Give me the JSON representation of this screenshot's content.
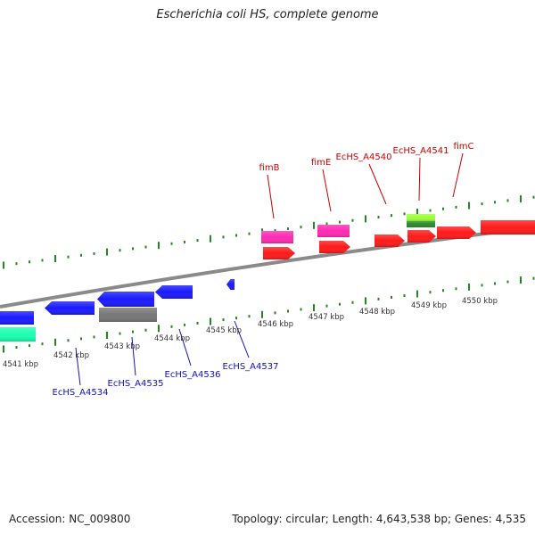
{
  "title": "Escherichia coli HS, complete genome",
  "accession": "Accession: NC_009800",
  "summary": "Topology: circular; Length: 4,643,538 bp; Genes: 4,535",
  "kbp_ticks": [
    "4541 kbp",
    "4542 kbp",
    "4543 kbp",
    "4544 kbp",
    "4545 kbp",
    "4546 kbp",
    "4547 kbp",
    "4548 kbp",
    "4549 kbp",
    "4550 kbp"
  ],
  "top_labels": [
    "fimB",
    "fimE",
    "EcHS_A4540",
    "EcHS_A4541",
    "fimC"
  ],
  "bottom_labels": [
    "EcHS_A4534",
    "EcHS_A4535",
    "EcHS_A4536",
    "EcHS_A4537"
  ],
  "colors": {
    "forward": "#ff1a1a",
    "reverse": "#1a1aff",
    "pink": "#ff2ab4",
    "teal": "#1affb0",
    "gray": "#777777",
    "lime": "#9cff3a",
    "darkgreen": "#2a8a2a",
    "backbone": "#8a8a8a",
    "tickgreen": "#1f8a1f"
  }
}
